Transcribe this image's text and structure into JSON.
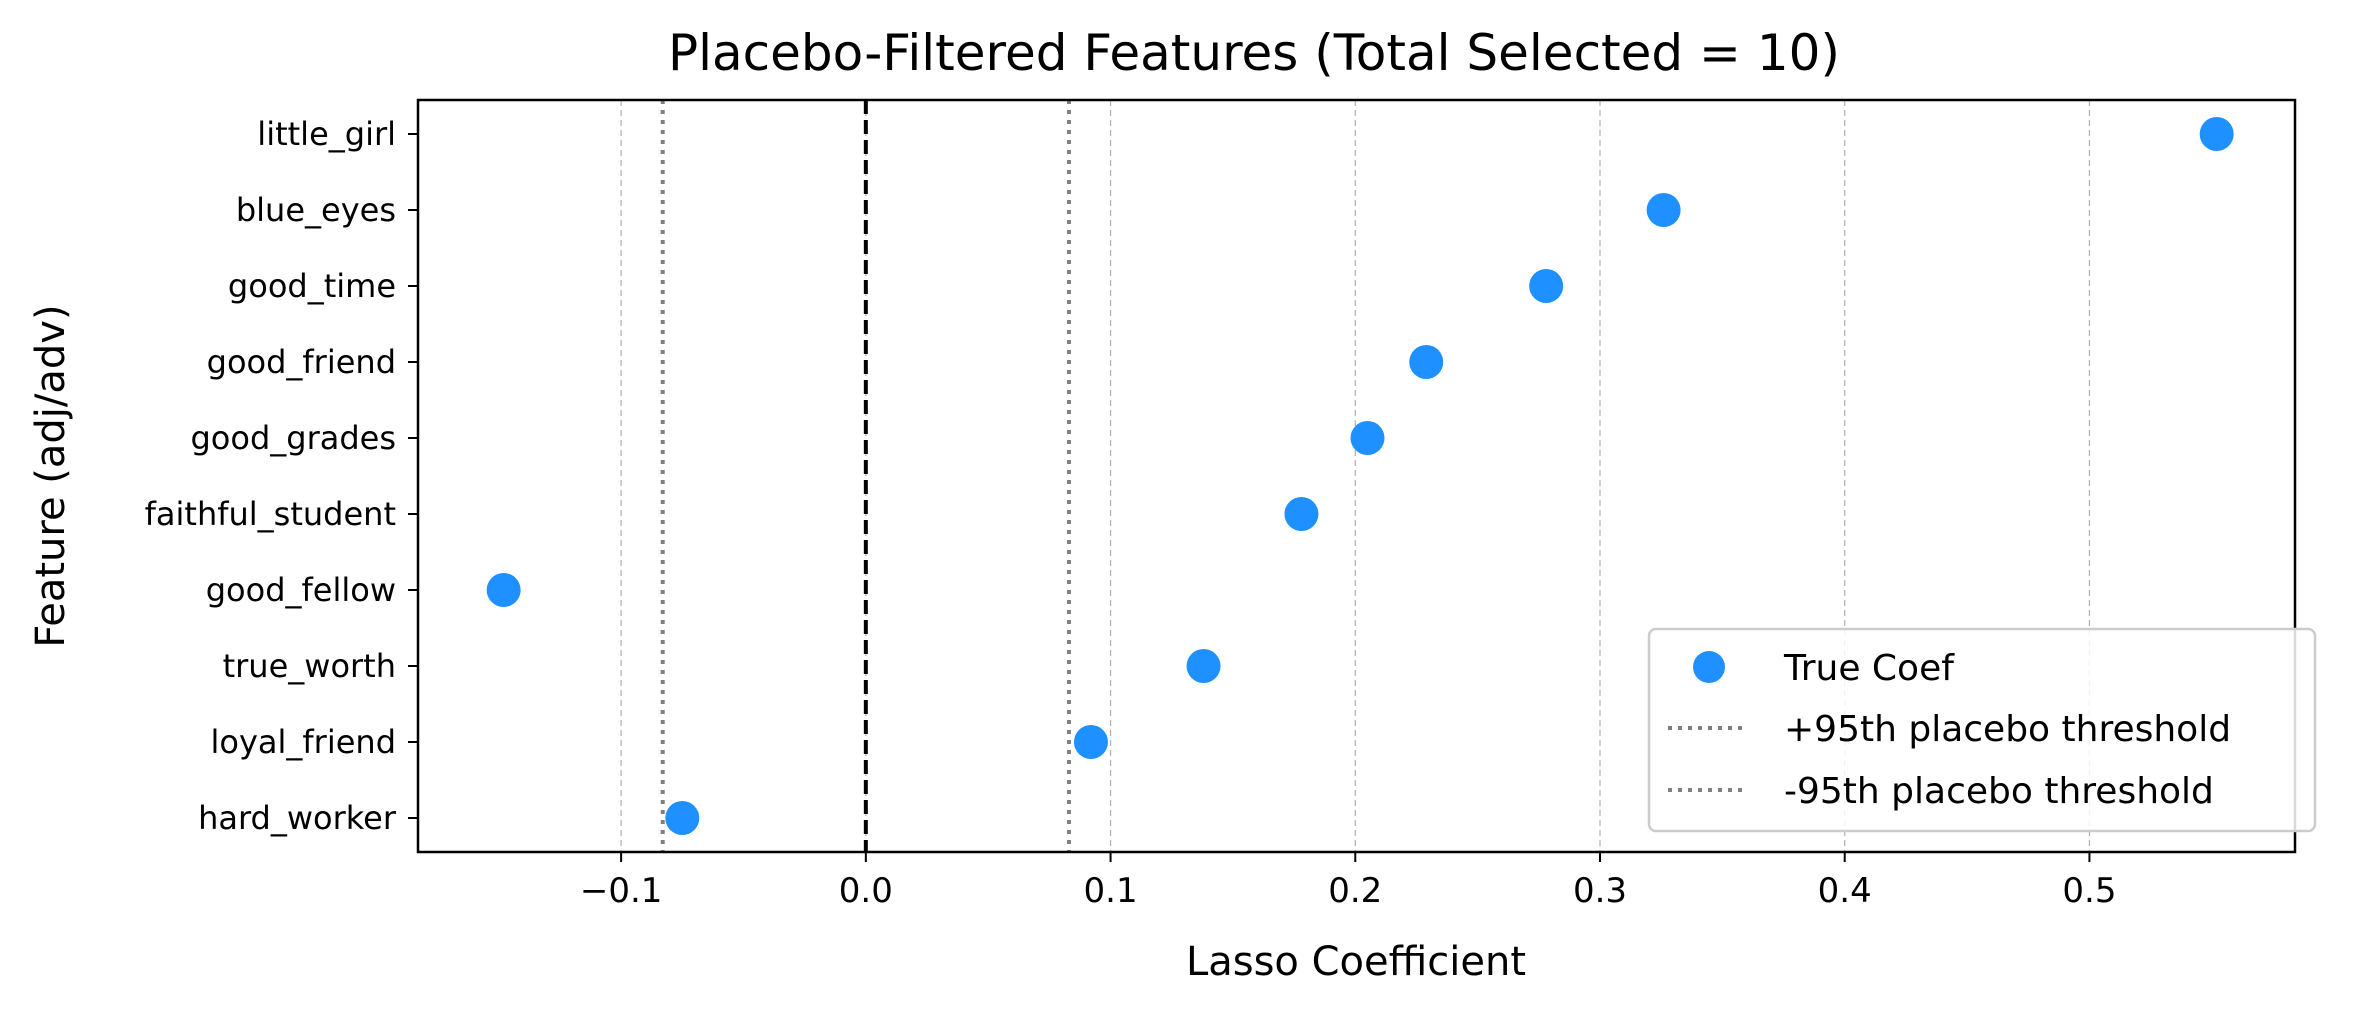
{
  "chart_data": {
    "type": "scatter",
    "title": "Placebo-Filtered Features (Total Selected = 10)",
    "xlabel": "Lasso Coefficient",
    "ylabel": "Feature (adj/adv)",
    "xlim": [
      -0.183,
      0.584
    ],
    "x_ticks": [
      -0.1,
      0.0,
      0.1,
      0.2,
      0.3,
      0.4,
      0.5
    ],
    "x_tick_labels": [
      "−0.1",
      "0.0",
      "0.1",
      "0.2",
      "0.3",
      "0.4",
      "0.5"
    ],
    "grid": "x",
    "categories": [
      "little_girl",
      "blue_eyes",
      "good_time",
      "good_friend",
      "good_grades",
      "faithful_student",
      "good_fellow",
      "true_worth",
      "loyal_friend",
      "hard_worker"
    ],
    "series": [
      {
        "name": "True Coef",
        "color": "#1e90ff",
        "values": [
          0.552,
          0.326,
          0.278,
          0.229,
          0.205,
          0.178,
          -0.148,
          0.138,
          0.092,
          -0.075
        ]
      }
    ],
    "zero_line": 0.0,
    "thresholds": [
      {
        "name": "+95th placebo threshold",
        "value": 0.083,
        "color": "#808080"
      },
      {
        "name": "-95th placebo threshold",
        "value": -0.083,
        "color": "#808080"
      }
    ],
    "legend_position": "lower right"
  }
}
